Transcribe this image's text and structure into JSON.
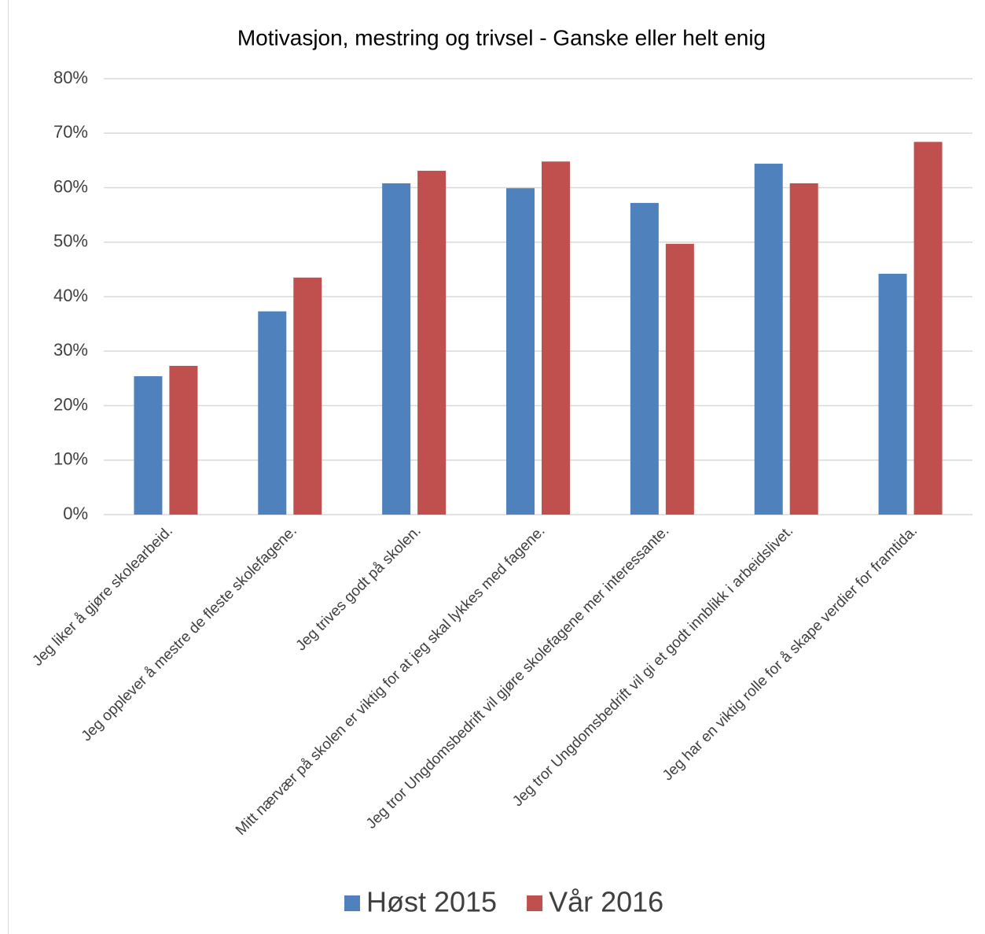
{
  "chart_data": {
    "type": "bar",
    "title": "Motivasjon, mestring og trivsel - Ganske eller helt enig",
    "categories": [
      "Jeg liker å gjøre skolearbeid.",
      "Jeg opplever å mestre de fleste skolefagene.",
      "Jeg trives godt på skolen.",
      "Mitt nærvær på skolen er viktig for at jeg skal lykkes med fagene.",
      "Jeg tror Ungdomsbedrift vil gjøre skolefagene mer interessante.",
      "Jeg tror Ungdomsbedrift vil gi et godt innblikk i arbeidslivet.",
      "Jeg har en viktig rolle for å skape verdier for framtida."
    ],
    "series": [
      {
        "name": "Høst 2015",
        "color": "#4f81bd",
        "values": [
          25.4,
          37.3,
          60.8,
          59.9,
          57.2,
          64.4,
          44.2
        ]
      },
      {
        "name": "Vår 2016",
        "color": "#c0504d",
        "values": [
          27.3,
          43.5,
          63.1,
          64.8,
          49.7,
          60.8,
          68.4
        ]
      }
    ],
    "ylim": [
      0,
      80
    ],
    "yticks": [
      {
        "value": 0,
        "label": "0%"
      },
      {
        "value": 10,
        "label": "10%"
      },
      {
        "value": 20,
        "label": "20%"
      },
      {
        "value": 30,
        "label": "30%"
      },
      {
        "value": 40,
        "label": "40%"
      },
      {
        "value": 50,
        "label": "50%"
      },
      {
        "value": 60,
        "label": "60%"
      },
      {
        "value": 70,
        "label": "70%"
      },
      {
        "value": 80,
        "label": "80%"
      }
    ],
    "grid": true,
    "legend": "bottom"
  }
}
